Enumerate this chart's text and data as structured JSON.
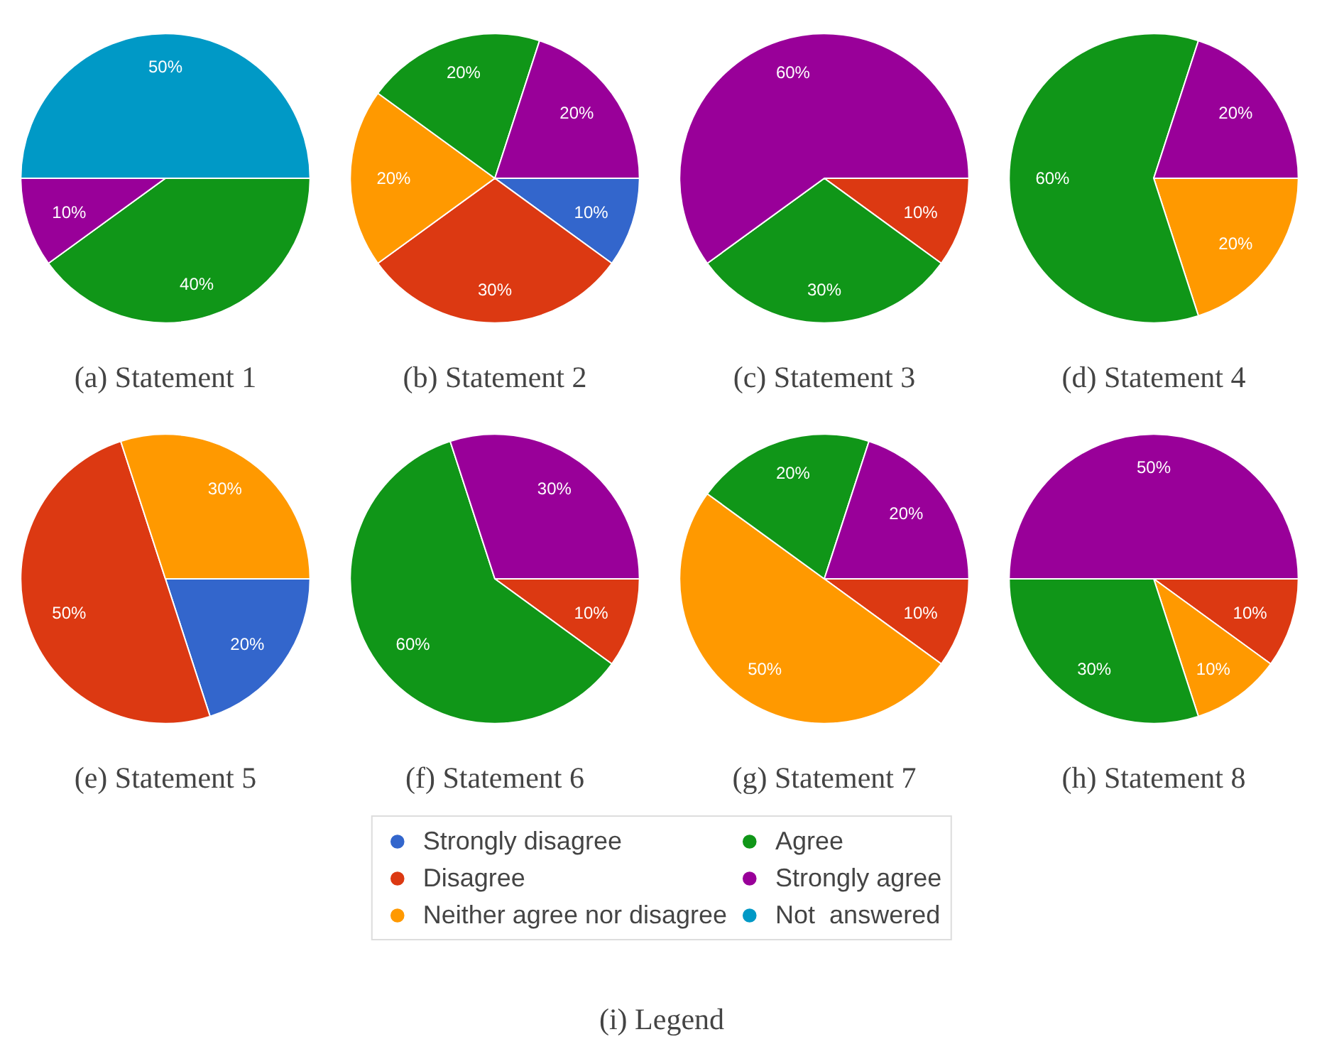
{
  "chart_data": [
    {
      "type": "pie",
      "title": "(a) Statement 1",
      "categories": [
        "Strongly disagree",
        "Disagree",
        "Neither agree nor disagree",
        "Agree",
        "Strongly agree",
        "Not  answered"
      ],
      "values": [
        0,
        0,
        0,
        40,
        10,
        50
      ],
      "value_labels": [
        null,
        null,
        null,
        "40%",
        "10%",
        "50%"
      ],
      "colors": [
        "#3366cc",
        "#dc3912",
        "#ff9900",
        "#109618",
        "#990099",
        "#0099c6"
      ],
      "legend": "bottom",
      "annotations": [
        "(i) Legend"
      ]
    },
    {
      "type": "pie",
      "title": "(b) Statement 2",
      "categories": [
        null,
        null,
        null,
        null,
        null,
        null
      ],
      "values": [
        10,
        30,
        20,
        20,
        20,
        0
      ],
      "value_labels": [
        "10%",
        "30%",
        "20%",
        "20%",
        "20%",
        null
      ],
      "colors": [
        "#3366cc",
        "#dc3912",
        "#ff9900",
        "#109618",
        "#990099",
        "#0099c6"
      ]
    },
    {
      "type": "pie",
      "title": "(c) Statement 3",
      "categories": [
        null,
        null,
        null,
        null,
        null,
        null
      ],
      "values": [
        0,
        10,
        0,
        30,
        60,
        0
      ],
      "value_labels": [
        null,
        "10%",
        null,
        "30%",
        "60%",
        null
      ],
      "colors": [
        "#3366cc",
        "#dc3912",
        "#ff9900",
        "#109618",
        "#990099",
        "#0099c6"
      ]
    },
    {
      "type": "pie",
      "title": "(d) Statement 4",
      "categories": [
        null,
        null,
        null,
        null,
        null,
        null
      ],
      "values": [
        0,
        0,
        20,
        60,
        20,
        0
      ],
      "value_labels": [
        null,
        null,
        "20%",
        "60%",
        "20%",
        null
      ],
      "colors": [
        "#3366cc",
        "#dc3912",
        "#ff9900",
        "#109618",
        "#990099",
        "#0099c6"
      ]
    },
    {
      "type": "pie",
      "title": "(e) Statement 5",
      "categories": [
        null,
        null,
        null,
        null,
        null,
        null
      ],
      "values": [
        20,
        50,
        30,
        0,
        0,
        0
      ],
      "value_labels": [
        "20%",
        "50%",
        "30%",
        null,
        null,
        null
      ],
      "colors": [
        "#3366cc",
        "#dc3912",
        "#ff9900",
        "#109618",
        "#990099",
        "#0099c6"
      ]
    },
    {
      "type": "pie",
      "title": "(f) Statement 6",
      "categories": [
        null,
        null,
        null,
        null,
        null,
        null
      ],
      "values": [
        0,
        10,
        0,
        60,
        30,
        0
      ],
      "value_labels": [
        null,
        "10%",
        null,
        "60%",
        "30%",
        null
      ],
      "colors": [
        "#3366cc",
        "#dc3912",
        "#ff9900",
        "#109618",
        "#990099",
        "#0099c6"
      ]
    },
    {
      "type": "pie",
      "title": "(g) Statement 7",
      "categories": [
        null,
        null,
        null,
        null,
        null,
        null
      ],
      "values": [
        0,
        10,
        50,
        20,
        20,
        0
      ],
      "value_labels": [
        null,
        "10%",
        "50%",
        "20%",
        "20%",
        null
      ],
      "colors": [
        "#3366cc",
        "#dc3912",
        "#ff9900",
        "#109618",
        "#990099",
        "#0099c6"
      ]
    },
    {
      "type": "pie",
      "title": "(h) Statement 8",
      "categories": [
        null,
        null,
        null,
        null,
        null,
        null
      ],
      "values": [
        0,
        10,
        10,
        30,
        50,
        0
      ],
      "value_labels": [
        null,
        "10%",
        "10%",
        "30%",
        "50%",
        null
      ],
      "colors": [
        "#3366cc",
        "#dc3912",
        "#ff9900",
        "#109618",
        "#990099",
        "#0099c6"
      ]
    }
  ]
}
